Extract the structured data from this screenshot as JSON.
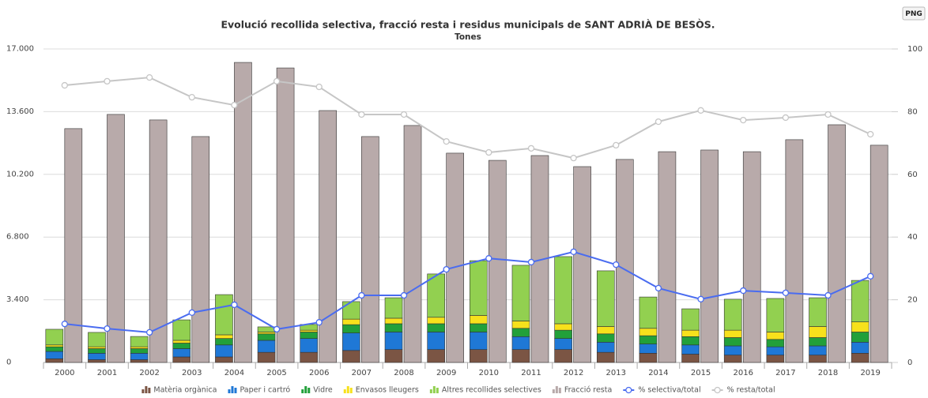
{
  "button": "PNG",
  "chart_data": {
    "type": "bar",
    "title": "Evolució recollida selectiva, fracció resta i residus municipals de SANT ADRIÀ DE BESÒS.",
    "subtitle": "Tones",
    "categories": [
      "2000",
      "2001",
      "2002",
      "2003",
      "2004",
      "2005",
      "2006",
      "2007",
      "2008",
      "2009",
      "2010",
      "2011",
      "2012",
      "2013",
      "2014",
      "2015",
      "2016",
      "2017",
      "2018",
      "2019"
    ],
    "ylim": [
      0,
      17000
    ],
    "yticks": [
      0,
      {
        "value": 3400,
        "label": "3.400"
      },
      {
        "value": 6800,
        "label": "6.800"
      },
      {
        "value": 10200,
        "label": "10.200"
      },
      {
        "value": 13600,
        "label": "13.600"
      },
      {
        "value": 17000,
        "label": "17.000"
      }
    ],
    "y2lim": [
      0,
      100
    ],
    "y2ticks": [
      0,
      20,
      40,
      60,
      80,
      100
    ],
    "grid": true,
    "legend": "bottom",
    "series": [
      {
        "name": "Matèria orgànica",
        "type": "bar",
        "stacked": true,
        "color": "#7b5544",
        "values": [
          200,
          150,
          150,
          300,
          300,
          550,
          550,
          650,
          700,
          700,
          700,
          700,
          700,
          550,
          500,
          450,
          400,
          400,
          400,
          500
        ]
      },
      {
        "name": "Paper i cartró",
        "type": "bar",
        "stacked": true,
        "color": "#1f78d6",
        "values": [
          400,
          350,
          350,
          450,
          650,
          650,
          750,
          950,
          950,
          950,
          950,
          700,
          600,
          550,
          500,
          500,
          500,
          450,
          500,
          600
        ]
      },
      {
        "name": "Vidre",
        "type": "bar",
        "stacked": true,
        "color": "#22a03a",
        "values": [
          250,
          250,
          250,
          300,
          350,
          350,
          350,
          450,
          450,
          450,
          450,
          450,
          450,
          450,
          450,
          450,
          450,
          400,
          450,
          550
        ]
      },
      {
        "name": "Envasos lleugers",
        "type": "bar",
        "stacked": true,
        "color": "#f7e11c",
        "values": [
          100,
          100,
          100,
          150,
          200,
          100,
          100,
          300,
          300,
          350,
          450,
          400,
          350,
          400,
          400,
          350,
          400,
          400,
          600,
          550
        ]
      },
      {
        "name": "Altres recollides selectives",
        "type": "bar",
        "stacked": true,
        "color": "#92d050",
        "values": [
          850,
          780,
          560,
          1110,
          2180,
          280,
          310,
          950,
          1110,
          2350,
          2970,
          3020,
          3640,
          3020,
          1700,
          1160,
          1680,
          1820,
          1560,
          2250
        ]
      },
      {
        "name": "Fracció resta",
        "type": "bar",
        "stacked": false,
        "color": "#b8aaaa",
        "values": [
          12680,
          13450,
          13150,
          12250,
          16270,
          15970,
          13660,
          12250,
          12850,
          11350,
          10960,
          11220,
          10620,
          11010,
          11430,
          11520,
          11430,
          12080,
          12890,
          11780
        ]
      },
      {
        "name": "% selectiva/total",
        "type": "line",
        "axis": "y2",
        "color": "#4a6cf0",
        "values": [
          12.3,
          10.8,
          9.6,
          15.9,
          18.4,
          10.6,
          12.8,
          21.4,
          21.4,
          29.7,
          33.2,
          32.0,
          35.3,
          31.2,
          23.7,
          20.2,
          22.9,
          22.2,
          21.4,
          27.5
        ]
      },
      {
        "name": "% resta/total",
        "type": "line",
        "axis": "y2",
        "color": "#c6c6c6",
        "values": [
          88.4,
          89.7,
          90.9,
          84.6,
          82.1,
          89.7,
          87.9,
          79.1,
          79.1,
          70.5,
          67.0,
          68.3,
          65.2,
          69.3,
          76.8,
          80.4,
          77.3,
          78.1,
          79.1,
          72.8
        ]
      }
    ]
  }
}
